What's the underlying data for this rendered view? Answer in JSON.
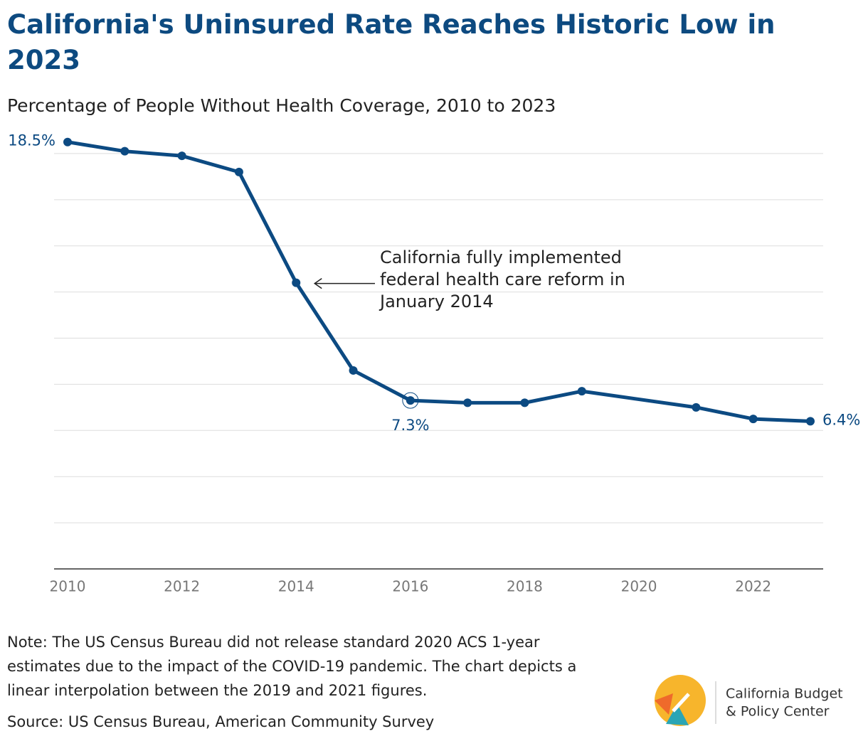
{
  "chart_data": {
    "type": "line",
    "title": "California's Uninsured Rate Reaches Historic Low in 2023",
    "subtitle": "Percentage of People Without Health Coverage, 2010 to 2023",
    "x": [
      2010,
      2011,
      2012,
      2013,
      2014,
      2015,
      2016,
      2017,
      2018,
      2019,
      2021,
      2022,
      2023
    ],
    "series": [
      {
        "name": "Uninsured rate",
        "color": "#0c4a82",
        "values": [
          18.5,
          18.1,
          17.9,
          17.2,
          12.4,
          8.6,
          7.3,
          7.2,
          7.2,
          7.7,
          7.0,
          6.5,
          6.4
        ],
        "value_labels": [
          "18.5%",
          null,
          null,
          null,
          null,
          null,
          "7.3%",
          null,
          null,
          null,
          null,
          null,
          "6.4%"
        ]
      }
    ],
    "xlim": [
      2010,
      2023
    ],
    "xticks": [
      2010,
      2012,
      2014,
      2016,
      2018,
      2020,
      2022
    ],
    "ylim": [
      0,
      18.5
    ],
    "yticks": [
      0,
      2,
      4,
      6,
      8,
      10,
      12,
      14,
      16,
      18
    ],
    "grid": true,
    "annotation": {
      "x": 2014,
      "lines": [
        "California fully implemented",
        "federal health care reform in",
        "January 2014"
      ]
    },
    "notes": [
      "Note: The US Census Bureau did not release standard 2020 ACS 1-year",
      "estimates due to the impact of the COVID-19 pandemic. The chart depicts a",
      "linear interpolation between the 2019 and 2021 figures."
    ],
    "source": "Source: US Census Bureau, American Community Survey",
    "logo": [
      "California Budget",
      "& Policy Center"
    ]
  }
}
